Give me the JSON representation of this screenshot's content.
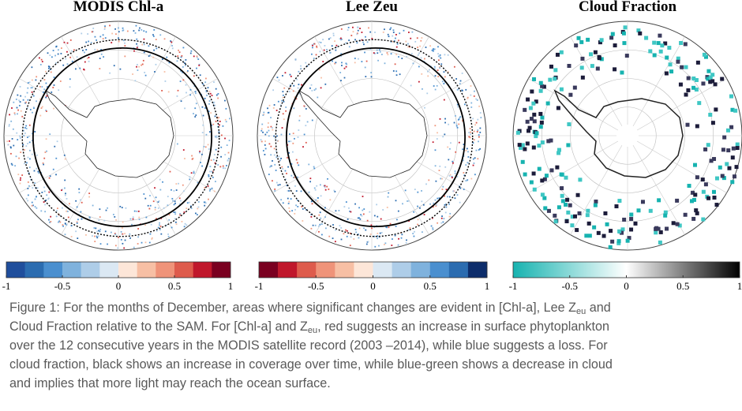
{
  "panels": [
    {
      "title": "MODIS Chl-a",
      "colorbar": {
        "range": [
          -1,
          1
        ],
        "ticks": [
          -1,
          -0.5,
          0,
          0.5,
          1
        ],
        "colors": [
          "#1f4e9c",
          "#2b6cb0",
          "#4a8fcf",
          "#7fb2dd",
          "#aecde8",
          "#dbe8f3",
          "#fde6d8",
          "#f7bfa4",
          "#ef9379",
          "#de5b4c",
          "#c0172b",
          "#7a0020"
        ]
      }
    },
    {
      "title": "Lee Zeu",
      "colorbar": {
        "range": [
          -1,
          1
        ],
        "ticks": [
          -1,
          -0.5,
          0,
          0.5,
          1
        ],
        "colors": [
          "#7a0020",
          "#c0172b",
          "#de5b4c",
          "#ef9379",
          "#f7bfa4",
          "#fde6d8",
          "#dbe8f3",
          "#aecde8",
          "#7fb2dd",
          "#4a8fcf",
          "#2b6cb0",
          "#0d2d6b"
        ]
      }
    },
    {
      "title": "Cloud Fraction",
      "colorbar": {
        "range": [
          -1,
          1
        ],
        "ticks": [
          -1,
          -0.5,
          0,
          0.5,
          1
        ],
        "gradient": [
          "#17b3b0",
          "#ffffff",
          "#000000"
        ]
      }
    }
  ],
  "caption": {
    "lines": [
      [
        {
          "text": "Figure 1: For the months of December, areas where significant changes are evident in [Chl-a], Lee Z"
        },
        {
          "sub": "eu"
        },
        {
          "text": " and"
        }
      ],
      [
        {
          "text": "Cloud Fraction relative to the SAM. For [Chl-a] and Z"
        },
        {
          "sub": "eu"
        },
        {
          "text": ", red suggests an increase in surface phytoplankton"
        }
      ],
      [
        {
          "text": "over the 12 consecutive years in the MODIS satellite record (2003 –2014), while blue suggests a loss. For"
        }
      ],
      [
        {
          "text": "cloud fraction, black shows an increase in coverage over time, while blue-green shows a decrease in cloud"
        }
      ],
      [
        {
          "text": "and implies that more light may reach the ocean surface."
        }
      ]
    ]
  }
}
